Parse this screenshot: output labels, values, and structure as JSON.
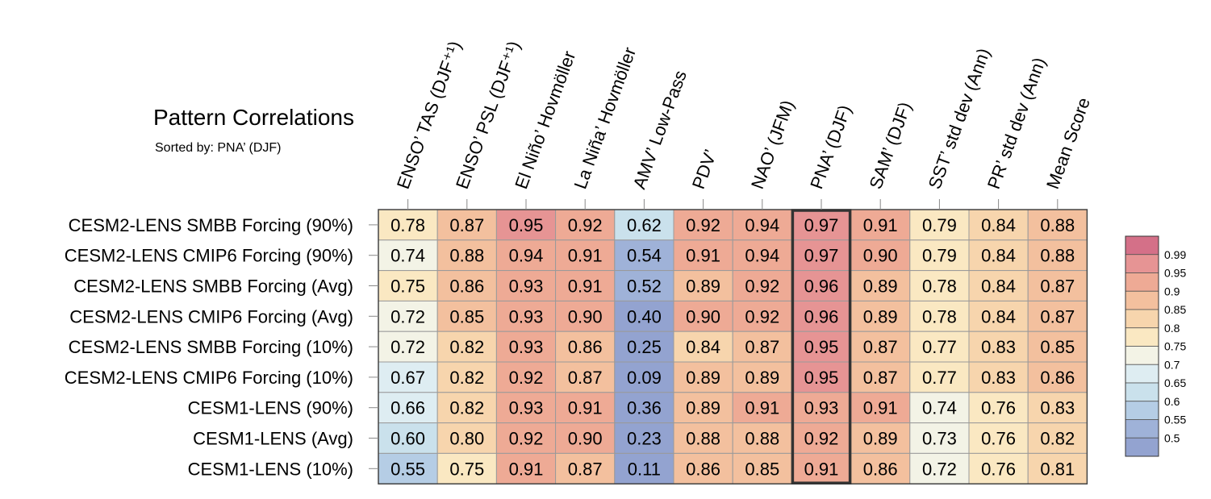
{
  "chart_data": {
    "type": "heatmap",
    "title": "Pattern Correlations",
    "subtitle": "Sorted by: PNA’ (DJF)",
    "columns": [
      "ENSO’ TAS (DJF⁺¹)",
      "ENSO’ PSL (DJF⁺¹)",
      "El Niño’ Hovmöller",
      "La Niña’ Hovmöller",
      "AMV’ Low-Pass",
      "PDV’",
      "NAO’ (JFM)",
      "PNA’ (DJF)",
      "SAM’ (DJF)",
      "SST’ std dev (Ann)",
      "PR’ std dev (Ann)",
      "Mean Score"
    ],
    "rows": [
      "CESM2-LENS SMBB Forcing (90%)",
      "CESM2-LENS CMIP6 Forcing (90%)",
      "CESM2-LENS SMBB Forcing (Avg)",
      "CESM2-LENS CMIP6 Forcing (Avg)",
      "CESM2-LENS SMBB Forcing (10%)",
      "CESM2-LENS CMIP6 Forcing (10%)",
      "CESM1-LENS (90%)",
      "CESM1-LENS (Avg)",
      "CESM1-LENS (10%)"
    ],
    "values": [
      [
        "0.78",
        "0.87",
        "0.95",
        "0.92",
        "0.62",
        "0.92",
        "0.94",
        "0.97",
        "0.91",
        "0.79",
        "0.84",
        "0.88"
      ],
      [
        "0.74",
        "0.88",
        "0.94",
        "0.91",
        "0.54",
        "0.91",
        "0.94",
        "0.97",
        "0.90",
        "0.79",
        "0.84",
        "0.88"
      ],
      [
        "0.75",
        "0.86",
        "0.93",
        "0.91",
        "0.52",
        "0.89",
        "0.92",
        "0.96",
        "0.89",
        "0.78",
        "0.84",
        "0.87"
      ],
      [
        "0.72",
        "0.85",
        "0.93",
        "0.90",
        "0.40",
        "0.90",
        "0.92",
        "0.96",
        "0.89",
        "0.78",
        "0.84",
        "0.87"
      ],
      [
        "0.72",
        "0.82",
        "0.93",
        "0.86",
        "0.25",
        "0.84",
        "0.87",
        "0.95",
        "0.87",
        "0.77",
        "0.83",
        "0.85"
      ],
      [
        "0.67",
        "0.82",
        "0.92",
        "0.87",
        "0.09",
        "0.89",
        "0.89",
        "0.95",
        "0.87",
        "0.77",
        "0.83",
        "0.86"
      ],
      [
        "0.66",
        "0.82",
        "0.93",
        "0.91",
        "0.36",
        "0.89",
        "0.91",
        "0.93",
        "0.91",
        "0.74",
        "0.76",
        "0.83"
      ],
      [
        "0.60",
        "0.80",
        "0.92",
        "0.90",
        "0.23",
        "0.88",
        "0.88",
        "0.92",
        "0.89",
        "0.73",
        "0.76",
        "0.82"
      ],
      [
        "0.55",
        "0.75",
        "0.91",
        "0.87",
        "0.11",
        "0.86",
        "0.85",
        "0.91",
        "0.86",
        "0.72",
        "0.76",
        "0.81"
      ]
    ],
    "highlight_column": "PNA’ (DJF)",
    "colorbar": {
      "tick_labels": [
        "0.99",
        "0.95",
        "0.9",
        "0.85",
        "0.8",
        "0.75",
        "0.7",
        "0.65",
        "0.6",
        "0.55",
        "0.5"
      ],
      "colors": [
        "#d47088",
        "#e69494",
        "#eeaa95",
        "#f3c09e",
        "#f7d5ad",
        "#fae8c2",
        "#f3f3e6",
        "#deedf2",
        "#cae1ec",
        "#b5cde5",
        "#9fb2d8",
        "#93a3d0"
      ]
    }
  }
}
